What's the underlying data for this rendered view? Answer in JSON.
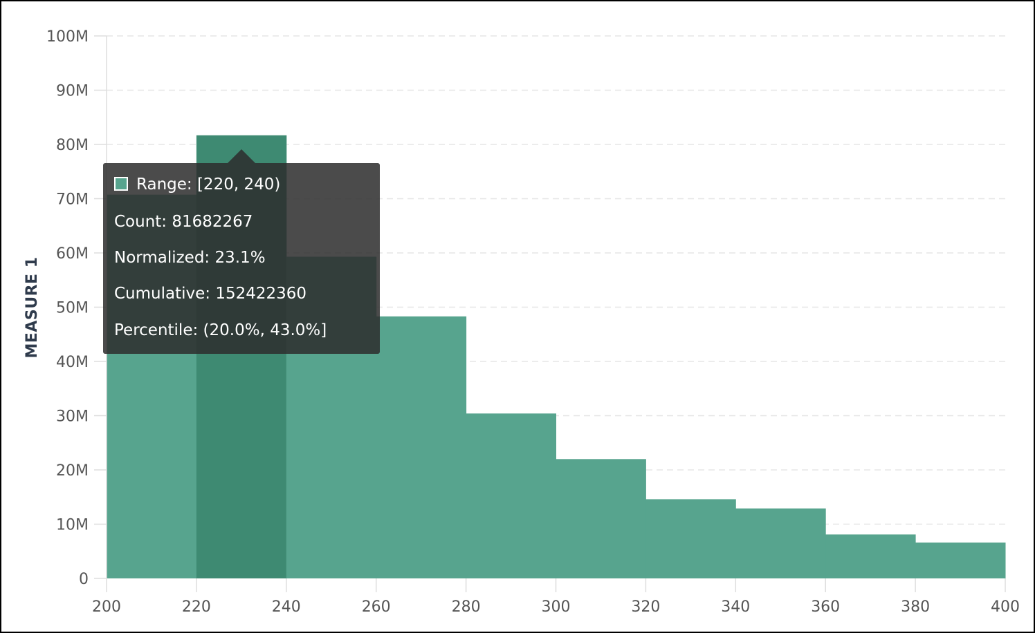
{
  "chart_data": {
    "type": "bar",
    "ylabel": "MEASURE 1",
    "xlabel": "",
    "ylim": [
      0,
      100000000
    ],
    "xlim": [
      200,
      400
    ],
    "y_ticks": [
      "0",
      "10M",
      "20M",
      "30M",
      "40M",
      "50M",
      "60M",
      "70M",
      "80M",
      "90M",
      "100M"
    ],
    "y_tick_values": [
      0,
      10000000,
      20000000,
      30000000,
      40000000,
      50000000,
      60000000,
      70000000,
      80000000,
      90000000,
      100000000
    ],
    "x_ticks": [
      "200",
      "220",
      "240",
      "260",
      "280",
      "300",
      "320",
      "340",
      "360",
      "380",
      "400"
    ],
    "x_tick_values": [
      200,
      220,
      240,
      260,
      280,
      300,
      320,
      340,
      360,
      380,
      400
    ],
    "grid": true,
    "bins": [
      {
        "start": 200,
        "end": 220,
        "value": 70740093
      },
      {
        "start": 220,
        "end": 240,
        "value": 81682267
      },
      {
        "start": 240,
        "end": 260,
        "value": 59300000
      },
      {
        "start": 260,
        "end": 280,
        "value": 48300000
      },
      {
        "start": 280,
        "end": 300,
        "value": 30400000
      },
      {
        "start": 300,
        "end": 320,
        "value": 22000000
      },
      {
        "start": 320,
        "end": 340,
        "value": 14600000
      },
      {
        "start": 340,
        "end": 360,
        "value": 12900000
      },
      {
        "start": 360,
        "end": 380,
        "value": 8100000
      },
      {
        "start": 380,
        "end": 400,
        "value": 6600000
      }
    ],
    "highlighted_bin": 1,
    "colors": {
      "bar": "#57a48e",
      "bar_highlight": "#3e8a72",
      "grid": "#e6e6e6",
      "axis": "#dddddd"
    }
  },
  "tooltip": {
    "range": "Range: [220, 240)",
    "count": "Count: 81682267",
    "normalized": "Normalized: 23.1%",
    "cumulative": "Cumulative: 152422360",
    "percentile": "Percentile: (20.0%, 43.0%]",
    "swatch_color": "#57a48e"
  }
}
